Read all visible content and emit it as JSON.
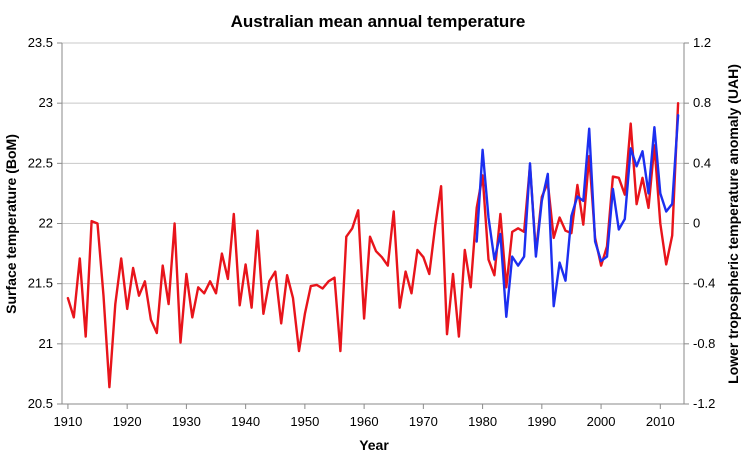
{
  "chart_data": {
    "type": "line",
    "title": "Australian mean annual temperature",
    "xlabel": "Year",
    "ylabel": "Surface temperature (BoM)",
    "y2label": "Lower tropospheric temperature anomaly (UAH)",
    "xlim": [
      1909,
      2014
    ],
    "ylim": [
      20.5,
      23.5
    ],
    "y2lim": [
      -1.2,
      1.2
    ],
    "grid": true,
    "x_ticks": [
      "1910",
      "1920",
      "1930",
      "1940",
      "1950",
      "1960",
      "1970",
      "1980",
      "1990",
      "2000",
      "2010"
    ],
    "y_ticks": [
      "20.5",
      "21",
      "21.5",
      "22",
      "22.5",
      "23",
      "23.5"
    ],
    "y2_ticks": [
      "-1.2",
      "-0.8",
      "-0.4",
      "0",
      "0.4",
      "0.8",
      "1.2"
    ],
    "series": [
      {
        "axis": "left",
        "color": "#e8141b",
        "x": [
          1910,
          1911,
          1912,
          1913,
          1914,
          1915,
          1916,
          1917,
          1918,
          1919,
          1920,
          1921,
          1922,
          1923,
          1924,
          1925,
          1926,
          1927,
          1928,
          1929,
          1930,
          1931,
          1932,
          1933,
          1934,
          1935,
          1936,
          1937,
          1938,
          1939,
          1940,
          1941,
          1942,
          1943,
          1944,
          1945,
          1946,
          1947,
          1948,
          1949,
          1950,
          1951,
          1952,
          1953,
          1954,
          1955,
          1956,
          1957,
          1958,
          1959,
          1960,
          1961,
          1962,
          1963,
          1964,
          1965,
          1966,
          1967,
          1968,
          1969,
          1970,
          1971,
          1972,
          1973,
          1974,
          1975,
          1976,
          1977,
          1978,
          1979,
          1980,
          1981,
          1982,
          1983,
          1984,
          1985,
          1986,
          1987,
          1988,
          1989,
          1990,
          1991,
          1992,
          1993,
          1994,
          1995,
          1996,
          1997,
          1998,
          1999,
          2000,
          2001,
          2002,
          2003,
          2004,
          2005,
          2006,
          2007,
          2008,
          2009,
          2010,
          2011,
          2012,
          2013
        ],
        "values": [
          21.38,
          21.22,
          21.71,
          21.06,
          22.02,
          22.0,
          21.4,
          20.64,
          21.33,
          21.71,
          21.29,
          21.63,
          21.4,
          21.52,
          21.2,
          21.09,
          21.65,
          21.33,
          22.0,
          21.01,
          21.58,
          21.22,
          21.47,
          21.42,
          21.52,
          21.42,
          21.75,
          21.54,
          22.08,
          21.32,
          21.66,
          21.3,
          21.94,
          21.25,
          21.52,
          21.6,
          21.17,
          21.57,
          21.38,
          20.94,
          21.25,
          21.48,
          21.49,
          21.46,
          21.52,
          21.55,
          20.94,
          21.89,
          21.96,
          22.11,
          21.21,
          21.89,
          21.77,
          21.72,
          21.65,
          22.1,
          21.3,
          21.6,
          21.42,
          21.78,
          21.72,
          21.58,
          21.98,
          22.31,
          21.08,
          21.58,
          21.06,
          21.78,
          21.47,
          22.13,
          22.4,
          21.7,
          21.57,
          22.08,
          21.47,
          21.93,
          21.96,
          21.93,
          22.48,
          21.76,
          22.22,
          22.34,
          21.88,
          22.05,
          21.94,
          21.92,
          22.32,
          21.99,
          22.56,
          21.88,
          21.65,
          21.81,
          22.39,
          22.38,
          22.24,
          22.83,
          22.16,
          22.38,
          22.13,
          22.65,
          22.0,
          21.66,
          21.9,
          23.0
        ]
      },
      {
        "axis": "right",
        "color": "#1c2ff0",
        "x": [
          1979,
          1980,
          1981,
          1982,
          1983,
          1984,
          1985,
          1986,
          1987,
          1988,
          1989,
          1990,
          1991,
          1992,
          1993,
          1994,
          1995,
          1996,
          1997,
          1998,
          1999,
          2000,
          2001,
          2002,
          2003,
          2004,
          2005,
          2006,
          2007,
          2008,
          2009,
          2010,
          2011,
          2012,
          2013
        ],
        "values": [
          -0.12,
          0.49,
          0.04,
          -0.24,
          -0.07,
          -0.62,
          -0.22,
          -0.28,
          -0.22,
          0.4,
          -0.22,
          0.15,
          0.33,
          -0.55,
          -0.26,
          -0.38,
          0.05,
          0.18,
          0.15,
          0.63,
          -0.12,
          -0.25,
          -0.22,
          0.23,
          -0.04,
          0.03,
          0.5,
          0.38,
          0.48,
          0.2,
          0.64,
          0.2,
          0.08,
          0.13,
          0.72
        ]
      }
    ]
  }
}
